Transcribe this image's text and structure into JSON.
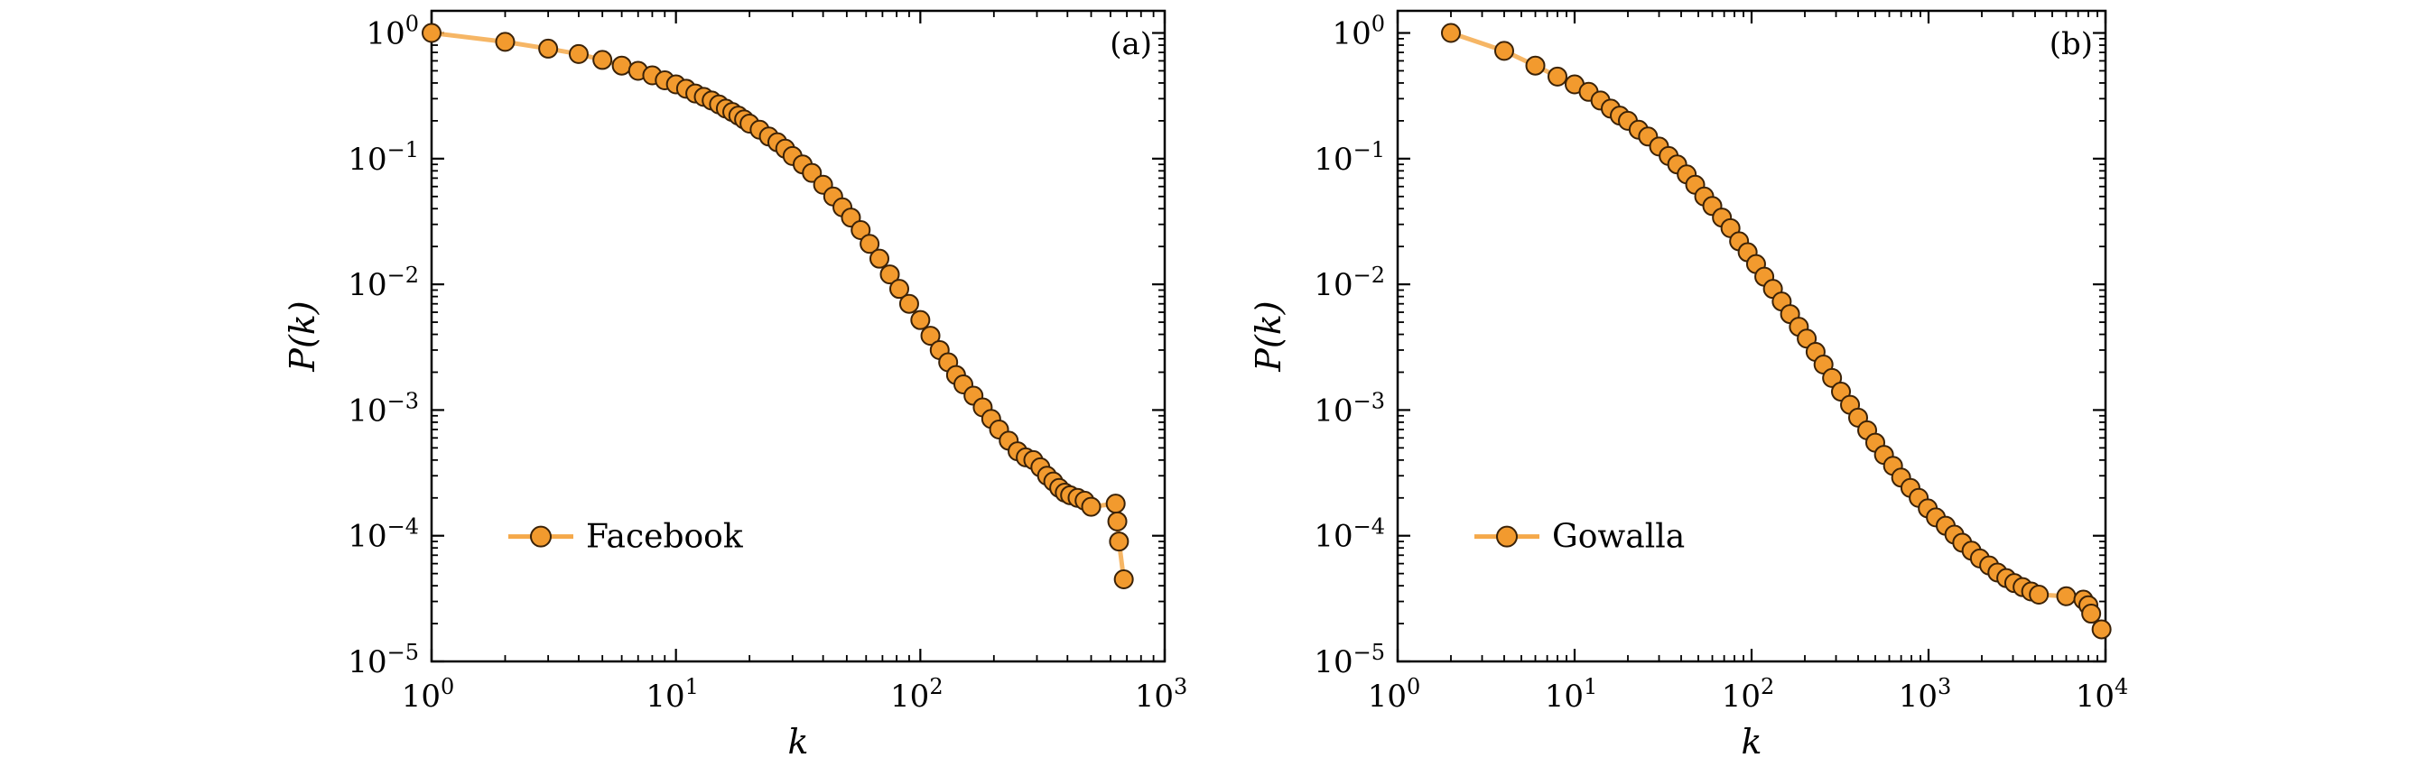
{
  "chart_data": [
    {
      "type": "line",
      "panel_label": "(a)",
      "xlabel": "k",
      "ylabel": "P(k)",
      "xscale": "log",
      "yscale": "log",
      "xlim": [
        1,
        1000
      ],
      "ylim": [
        1e-05,
        1.5
      ],
      "x_ticks": [
        {
          "base": "10",
          "exp": "0",
          "value": 1
        },
        {
          "base": "10",
          "exp": "1",
          "value": 10
        },
        {
          "base": "10",
          "exp": "2",
          "value": 100
        },
        {
          "base": "10",
          "exp": "3",
          "value": 1000
        }
      ],
      "y_ticks": [
        {
          "base": "10",
          "exp": "0",
          "value": 1
        },
        {
          "base": "10",
          "exp": "−1",
          "value": 0.1
        },
        {
          "base": "10",
          "exp": "−2",
          "value": 0.01
        },
        {
          "base": "10",
          "exp": "−3",
          "value": 0.001
        },
        {
          "base": "10",
          "exp": "−4",
          "value": 0.0001
        },
        {
          "base": "10",
          "exp": "−5",
          "value": 1e-05
        }
      ],
      "legend_position": "lower-left",
      "grid": false,
      "series": [
        {
          "name": "Facebook",
          "line_color": "#f5a94a",
          "marker_fill": "#f29a2e",
          "marker_edge": "#3a2208",
          "x": [
            1,
            2,
            3,
            4,
            5,
            6,
            7,
            8,
            9,
            10,
            11,
            12,
            13,
            14,
            15,
            16,
            17,
            18,
            19,
            20,
            22,
            24,
            26,
            28,
            30,
            33,
            36,
            40,
            44,
            48,
            52,
            57,
            62,
            68,
            75,
            82,
            90,
            100,
            110,
            120,
            130,
            140,
            150,
            165,
            180,
            195,
            210,
            230,
            250,
            270,
            290,
            310,
            330,
            350,
            370,
            390,
            410,
            440,
            470,
            500,
            630,
            640,
            650,
            680
          ],
          "y": [
            1.0,
            0.85,
            0.75,
            0.68,
            0.61,
            0.55,
            0.5,
            0.46,
            0.42,
            0.39,
            0.36,
            0.33,
            0.31,
            0.29,
            0.27,
            0.25,
            0.235,
            0.22,
            0.205,
            0.19,
            0.17,
            0.15,
            0.135,
            0.12,
            0.105,
            0.09,
            0.077,
            0.062,
            0.05,
            0.041,
            0.034,
            0.027,
            0.021,
            0.016,
            0.012,
            0.0092,
            0.007,
            0.0052,
            0.0039,
            0.003,
            0.0024,
            0.0019,
            0.0016,
            0.0013,
            0.00105,
            0.00085,
            0.0007,
            0.00057,
            0.00047,
            0.00042,
            0.0004,
            0.00035,
            0.0003,
            0.00027,
            0.00024,
            0.00022,
            0.00021,
            0.0002,
            0.00019,
            0.00017,
            0.00018,
            0.00013,
            9e-05,
            4.5e-05
          ]
        }
      ]
    },
    {
      "type": "line",
      "panel_label": "(b)",
      "xlabel": "k",
      "ylabel": "P(k)",
      "xscale": "log",
      "yscale": "log",
      "xlim": [
        1,
        10000
      ],
      "ylim": [
        1e-05,
        1.5
      ],
      "x_ticks": [
        {
          "base": "10",
          "exp": "0",
          "value": 1
        },
        {
          "base": "10",
          "exp": "1",
          "value": 10
        },
        {
          "base": "10",
          "exp": "2",
          "value": 100
        },
        {
          "base": "10",
          "exp": "3",
          "value": 1000
        },
        {
          "base": "10",
          "exp": "4",
          "value": 10000
        }
      ],
      "y_ticks": [
        {
          "base": "10",
          "exp": "0",
          "value": 1
        },
        {
          "base": "10",
          "exp": "−1",
          "value": 0.1
        },
        {
          "base": "10",
          "exp": "−2",
          "value": 0.01
        },
        {
          "base": "10",
          "exp": "−3",
          "value": 0.001
        },
        {
          "base": "10",
          "exp": "−4",
          "value": 0.0001
        },
        {
          "base": "10",
          "exp": "−5",
          "value": 1e-05
        }
      ],
      "legend_position": "lower-left",
      "grid": false,
      "series": [
        {
          "name": "Gowalla",
          "line_color": "#f5a94a",
          "marker_fill": "#f29a2e",
          "marker_edge": "#3a2208",
          "x": [
            2,
            4,
            6,
            8,
            10,
            12,
            14,
            16,
            18,
            20,
            23,
            26,
            30,
            34,
            38,
            43,
            48,
            54,
            60,
            68,
            76,
            85,
            95,
            106,
            118,
            132,
            148,
            165,
            185,
            205,
            230,
            255,
            285,
            320,
            360,
            400,
            450,
            500,
            560,
            630,
            700,
            790,
            880,
            990,
            1100,
            1250,
            1400,
            1550,
            1750,
            1950,
            2200,
            2450,
            2750,
            3050,
            3400,
            3800,
            4200,
            6000,
            7500,
            8000,
            8300,
            9500
          ],
          "y": [
            1.0,
            0.72,
            0.55,
            0.45,
            0.39,
            0.34,
            0.29,
            0.25,
            0.22,
            0.2,
            0.17,
            0.15,
            0.125,
            0.105,
            0.09,
            0.075,
            0.062,
            0.05,
            0.042,
            0.034,
            0.028,
            0.022,
            0.018,
            0.0145,
            0.0115,
            0.0092,
            0.0073,
            0.0058,
            0.0046,
            0.0037,
            0.0029,
            0.0023,
            0.0018,
            0.0014,
            0.0011,
            0.00087,
            0.00069,
            0.00055,
            0.00044,
            0.00036,
            0.00029,
            0.00024,
            0.0002,
            0.000165,
            0.00014,
            0.00012,
            0.000102,
            8.8e-05,
            7.6e-05,
            6.6e-05,
            5.8e-05,
            5.1e-05,
            4.6e-05,
            4.2e-05,
            3.9e-05,
            3.6e-05,
            3.4e-05,
            3.3e-05,
            3.1e-05,
            2.8e-05,
            2.4e-05,
            1.8e-05
          ]
        }
      ]
    }
  ]
}
